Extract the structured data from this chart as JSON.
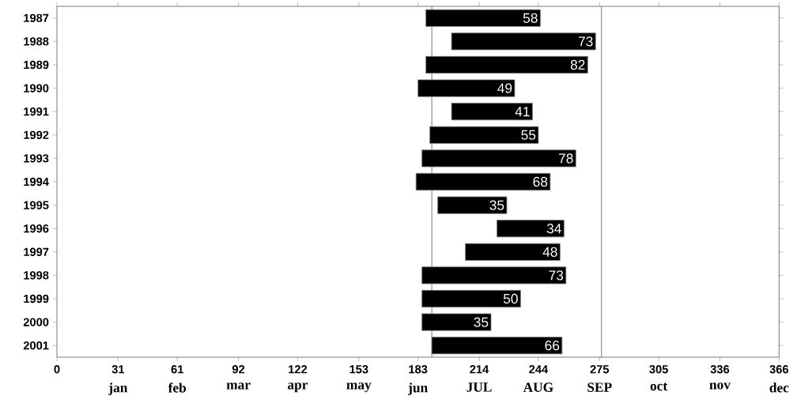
{
  "chart_data": {
    "type": "bar",
    "orientation": "horizontal",
    "categories": [
      "1987",
      "1988",
      "1989",
      "1990",
      "1991",
      "1992",
      "1993",
      "1994",
      "1995",
      "1996",
      "1997",
      "1998",
      "1999",
      "2000",
      "2001"
    ],
    "values": [
      58,
      73,
      82,
      49,
      41,
      55,
      78,
      68,
      35,
      34,
      48,
      73,
      50,
      35,
      66
    ],
    "base": [
      187,
      200,
      187,
      183,
      200,
      189,
      185,
      182,
      193,
      223,
      207,
      185,
      185,
      185,
      190
    ],
    "color": "#000000",
    "data_labels": true,
    "xlim": [
      0,
      366
    ],
    "xticks": [
      0,
      31,
      61,
      92,
      122,
      153,
      183,
      214,
      244,
      275,
      305,
      336,
      366
    ],
    "annotations": [
      "jan",
      "feb",
      "mar",
      "apr",
      "may",
      "jun",
      "JUL",
      "AUG",
      "SEP",
      "oct",
      "nov",
      "dec"
    ],
    "ref_lines": [
      {
        "axis": "x",
        "value": 190,
        "color": "#808080"
      },
      {
        "axis": "x",
        "value": 276,
        "color": "#808080"
      }
    ],
    "grid": false
  }
}
